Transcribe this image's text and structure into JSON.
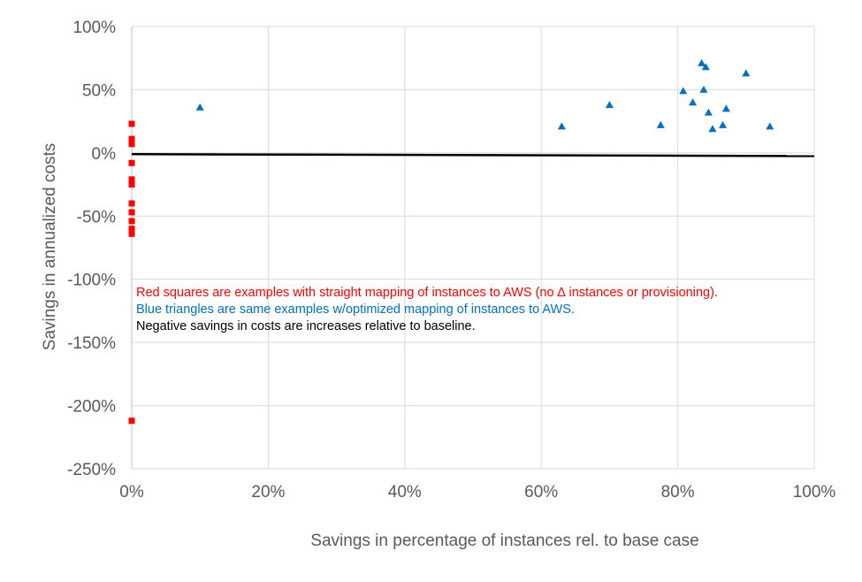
{
  "chart_data": {
    "type": "scatter",
    "title": "",
    "xlabel": "Savings in percentage of instances rel. to base case",
    "ylabel": "Savings in annualized costs",
    "xlim": [
      0,
      1
    ],
    "ylim": [
      -2.5,
      1
    ],
    "x_ticks": [
      {
        "value": 0.0,
        "label": "0%"
      },
      {
        "value": 0.2,
        "label": "20%"
      },
      {
        "value": 0.4,
        "label": "40%"
      },
      {
        "value": 0.6,
        "label": "60%"
      },
      {
        "value": 0.8,
        "label": "80%"
      },
      {
        "value": 1.0,
        "label": "100%"
      }
    ],
    "y_ticks": [
      {
        "value": 1.0,
        "label": "100%"
      },
      {
        "value": 0.5,
        "label": "50%"
      },
      {
        "value": 0.0,
        "label": "0%"
      },
      {
        "value": -0.5,
        "label": "-50%"
      },
      {
        "value": -1.0,
        "label": "-100%"
      },
      {
        "value": -1.5,
        "label": "-150%"
      },
      {
        "value": -2.0,
        "label": "-200%"
      },
      {
        "value": -2.5,
        "label": "-250%"
      }
    ],
    "grid": true,
    "series": [
      {
        "name": "straight mapping",
        "marker": "square",
        "color": "#FF0000",
        "points": [
          {
            "x": 0.0,
            "y": 0.23
          },
          {
            "x": 0.0,
            "y": 0.11
          },
          {
            "x": 0.0,
            "y": 0.09
          },
          {
            "x": 0.0,
            "y": 0.07
          },
          {
            "x": 0.0,
            "y": -0.08
          },
          {
            "x": 0.0,
            "y": -0.21
          },
          {
            "x": 0.0,
            "y": -0.25
          },
          {
            "x": 0.0,
            "y": -0.4
          },
          {
            "x": 0.0,
            "y": -0.47
          },
          {
            "x": 0.0,
            "y": -0.54
          },
          {
            "x": 0.0,
            "y": -0.6
          },
          {
            "x": 0.0,
            "y": -0.64
          },
          {
            "x": 0.0,
            "y": -2.12
          }
        ]
      },
      {
        "name": "optimized mapping",
        "marker": "triangle",
        "color": "#0070C0",
        "points": [
          {
            "x": 0.1,
            "y": 0.36
          },
          {
            "x": 0.63,
            "y": 0.21
          },
          {
            "x": 0.7,
            "y": 0.38
          },
          {
            "x": 0.775,
            "y": 0.22
          },
          {
            "x": 0.808,
            "y": 0.49
          },
          {
            "x": 0.822,
            "y": 0.4
          },
          {
            "x": 0.835,
            "y": 0.71
          },
          {
            "x": 0.838,
            "y": 0.5
          },
          {
            "x": 0.841,
            "y": 0.68
          },
          {
            "x": 0.845,
            "y": 0.32
          },
          {
            "x": 0.851,
            "y": 0.19
          },
          {
            "x": 0.866,
            "y": 0.22
          },
          {
            "x": 0.871,
            "y": 0.35
          },
          {
            "x": 0.9,
            "y": 0.63
          },
          {
            "x": 0.935,
            "y": 0.21
          }
        ]
      }
    ],
    "trendline": {
      "x": [
        0,
        1
      ],
      "y": [
        -0.01,
        -0.025
      ],
      "color": "#000000"
    },
    "annotations": [
      {
        "text": "Red squares are examples with straight mapping of instances to AWS (no ∆ instances or provisioning).",
        "color": "#FF0000"
      },
      {
        "text": "Blue triangles are same examples w/optimized mapping of instances to AWS.",
        "color": "#0070C0"
      },
      {
        "text": "Negative savings in costs are increases relative to baseline.",
        "color": "#000000"
      }
    ]
  }
}
